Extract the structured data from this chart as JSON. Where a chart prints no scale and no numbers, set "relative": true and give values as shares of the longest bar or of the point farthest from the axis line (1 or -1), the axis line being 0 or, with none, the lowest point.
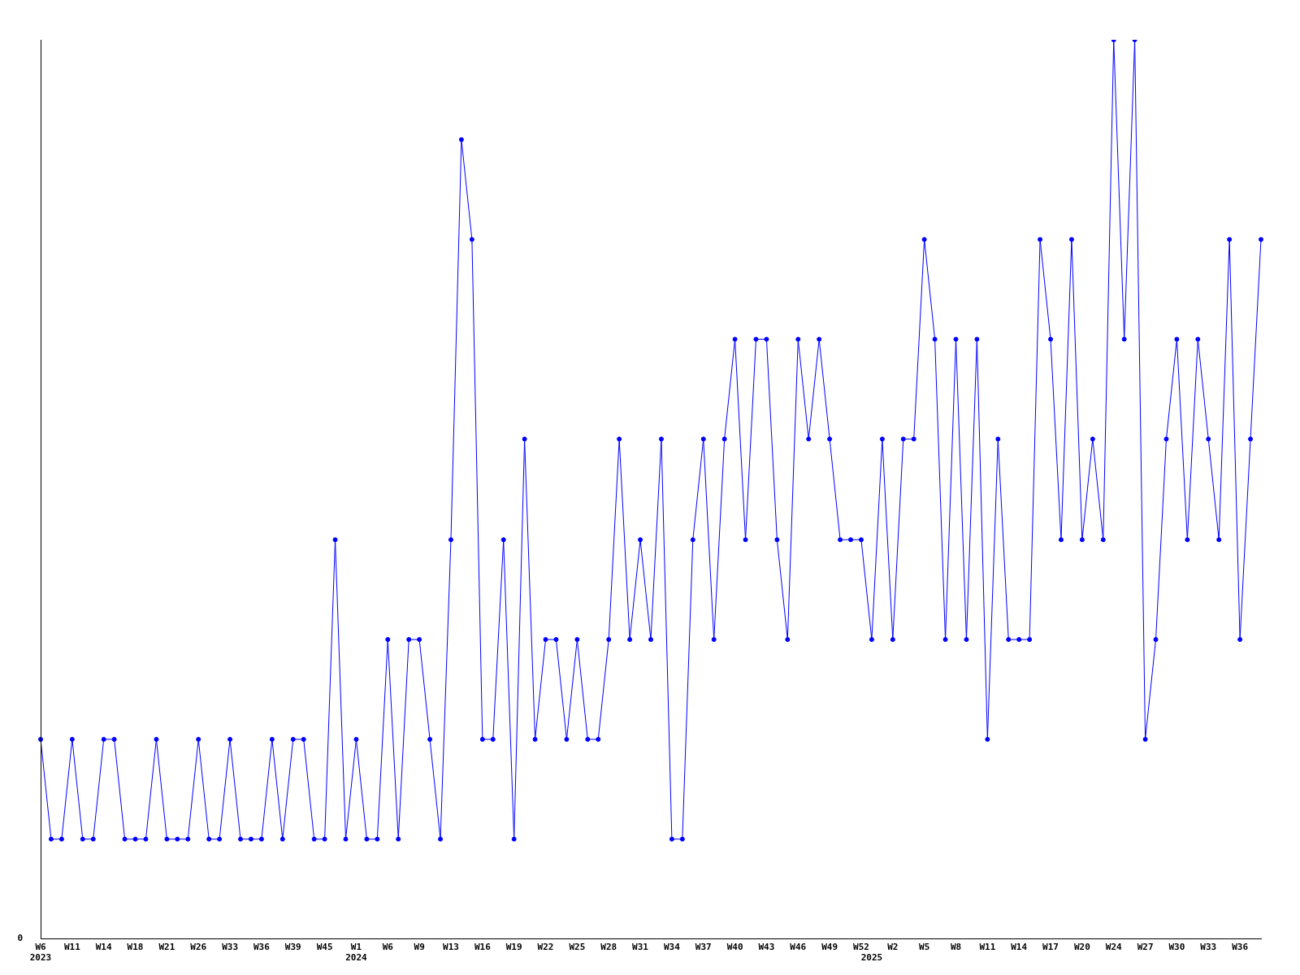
{
  "chart_data": {
    "type": "line",
    "relative": true,
    "color": "#0000ff",
    "marker": "circle",
    "grid": false,
    "legend": false,
    "annotations": [
      "0"
    ],
    "categories": [
      "W6\n2023",
      null,
      null,
      "W11",
      null,
      null,
      "W14",
      null,
      null,
      "W18",
      null,
      null,
      "W21",
      null,
      null,
      "W26",
      null,
      null,
      "W33",
      null,
      null,
      "W36",
      null,
      null,
      "W39",
      null,
      null,
      "W45",
      null,
      null,
      "W1\n2024",
      null,
      null,
      "W6",
      null,
      null,
      "W9",
      null,
      null,
      "W13",
      null,
      null,
      "W16",
      null,
      null,
      "W19",
      null,
      null,
      "W22",
      null,
      null,
      "W25",
      null,
      null,
      "W28",
      null,
      null,
      "W31",
      null,
      null,
      "W34",
      null,
      null,
      "W37",
      null,
      null,
      "W40",
      null,
      null,
      "W43",
      null,
      null,
      "W46",
      null,
      null,
      "W49",
      null,
      null,
      "W52",
      "\n2025",
      null,
      "W2",
      null,
      null,
      "W5",
      null,
      null,
      "W8",
      null,
      null,
      "W11",
      null,
      null,
      "W14",
      null,
      null,
      "W17",
      null,
      null,
      "W20",
      null,
      null,
      "W24",
      null,
      null,
      "W27",
      null,
      null,
      "W30",
      null,
      null,
      "W33",
      null,
      null,
      "W36",
      null,
      null
    ],
    "values": [
      0.222,
      0.111,
      0.111,
      0.222,
      0.111,
      0.111,
      0.222,
      0.222,
      0.111,
      0.111,
      0.111,
      0.222,
      0.111,
      0.111,
      0.111,
      0.222,
      0.111,
      0.111,
      0.222,
      0.111,
      0.111,
      0.111,
      0.222,
      0.111,
      0.222,
      0.222,
      0.111,
      0.111,
      0.444,
      0.111,
      0.222,
      0.111,
      0.111,
      0.333,
      0.111,
      0.333,
      0.333,
      0.222,
      0.111,
      0.444,
      0.889,
      0.778,
      0.222,
      0.222,
      0.444,
      0.111,
      0.556,
      0.222,
      0.333,
      0.333,
      0.222,
      0.333,
      0.222,
      0.222,
      0.333,
      0.556,
      0.333,
      0.444,
      0.333,
      0.556,
      0.111,
      0.111,
      0.444,
      0.556,
      0.333,
      0.556,
      0.667,
      0.444,
      0.667,
      0.667,
      0.444,
      0.333,
      0.667,
      0.556,
      0.667,
      0.556,
      0.444,
      0.444,
      0.444,
      0.333,
      0.556,
      0.333,
      0.556,
      0.556,
      0.778,
      0.667,
      0.333,
      0.667,
      0.333,
      0.667,
      0.222,
      0.556,
      0.333,
      0.333,
      0.333,
      0.778,
      0.667,
      0.444,
      0.778,
      0.444,
      0.556,
      0.444,
      1,
      0.667,
      1,
      0.222,
      0.333,
      0.556,
      0.667,
      0.444,
      0.667,
      0.556,
      0.444,
      0.778,
      0.333,
      0.556,
      0.778
    ]
  }
}
